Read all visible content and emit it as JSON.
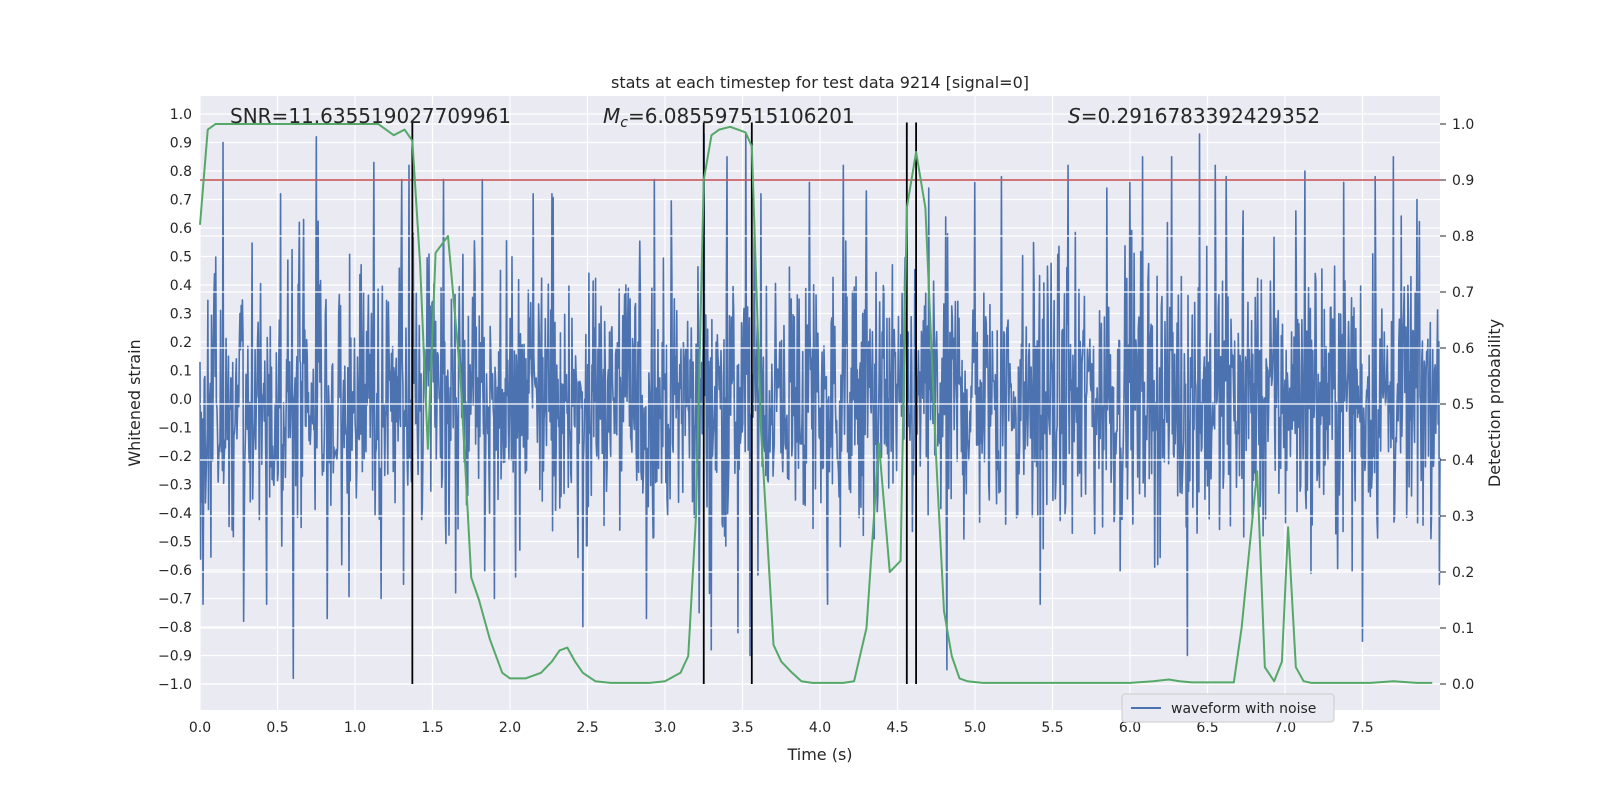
{
  "chart_data": {
    "type": "line",
    "title": "stats at each timestep for test data 9214 [signal=0]",
    "xlabel": "Time (s)",
    "ylabel_left": "Whitened strain",
    "ylabel_right": "Detection probability",
    "xlim": [
      0.0,
      8.0
    ],
    "ylim_left": [
      -1.0,
      1.0
    ],
    "ylim_right": [
      0.0,
      1.0
    ],
    "x_ticks": [
      0.0,
      0.5,
      1.0,
      1.5,
      2.0,
      2.5,
      3.0,
      3.5,
      4.0,
      4.5,
      5.0,
      5.5,
      6.0,
      6.5,
      7.0,
      7.5
    ],
    "x_tick_labels": [
      "0.0",
      "0.5",
      "1.0",
      "1.5",
      "2.0",
      "2.5",
      "3.0",
      "3.5",
      "4.0",
      "4.5",
      "5.0",
      "5.5",
      "6.0",
      "6.5",
      "7.0",
      "7.5"
    ],
    "y_left_ticks": [
      1.0,
      0.9,
      0.8,
      0.7,
      0.6,
      0.5,
      0.4,
      0.3,
      0.2,
      0.1,
      0.0,
      -0.1,
      -0.2,
      -0.3,
      -0.4,
      -0.5,
      -0.6,
      -0.7,
      -0.8,
      -0.9,
      -1.0
    ],
    "y_left_tick_labels": [
      "1.0",
      "0.9",
      "0.8",
      "0.7",
      "0.6",
      "0.5",
      "0.4",
      "0.3",
      "0.2",
      "0.1",
      "0.0",
      "−0.1",
      "−0.2",
      "−0.3",
      "−0.4",
      "−0.5",
      "−0.6",
      "−0.7",
      "−0.8",
      "−0.9",
      "−1.0"
    ],
    "y_right_ticks": [
      1.0,
      0.9,
      0.8,
      0.7,
      0.6,
      0.5,
      0.4,
      0.3,
      0.2,
      0.1,
      0.0
    ],
    "y_right_tick_labels": [
      "1.0",
      "0.9",
      "0.8",
      "0.7",
      "0.6",
      "0.5",
      "0.4",
      "0.3",
      "0.2",
      "0.1",
      "0.0"
    ],
    "grid": true,
    "legend": {
      "placement": "bottom-right",
      "entries": [
        "waveform with noise"
      ]
    },
    "annotations": {
      "snr_prefix": "SNR=",
      "snr_value": "11.635519027709961",
      "mc_symbol": "M",
      "mc_subscript": "c",
      "mc_value": "=6.085597515106201",
      "s_symbol": "S",
      "s_value": "=0.2916783392429352"
    },
    "threshold": {
      "axis": "right",
      "value": 0.9,
      "color": "#c44e52"
    },
    "vertical_markers_x": [
      1.37,
      3.25,
      3.56,
      4.56,
      4.62
    ],
    "marker_range_left": [
      -1.0,
      0.97
    ],
    "waveform": {
      "name": "waveform with noise",
      "color": "#4c72b0",
      "samples": 2048,
      "typical_envelope": 0.37,
      "peaks": [
        [
          0.02,
          -0.72
        ],
        [
          0.15,
          0.9
        ],
        [
          0.28,
          -0.78
        ],
        [
          0.43,
          -0.72
        ],
        [
          0.52,
          0.72
        ],
        [
          0.6,
          -0.98
        ],
        [
          0.67,
          0.63
        ],
        [
          0.75,
          0.92
        ],
        [
          0.82,
          -0.77
        ],
        [
          1.12,
          0.83
        ],
        [
          1.17,
          -0.7
        ],
        [
          1.3,
          0.77
        ],
        [
          1.35,
          0.82
        ],
        [
          1.57,
          0.77
        ],
        [
          1.65,
          -0.68
        ],
        [
          1.82,
          0.77
        ],
        [
          1.9,
          -0.7
        ],
        [
          2.15,
          0.72
        ],
        [
          2.27,
          0.72
        ],
        [
          2.47,
          -0.8
        ],
        [
          2.88,
          -0.77
        ],
        [
          2.93,
          0.77
        ],
        [
          3.22,
          -0.75
        ],
        [
          3.25,
          0.93
        ],
        [
          3.3,
          -0.88
        ],
        [
          3.4,
          0.85
        ],
        [
          3.47,
          -0.82
        ],
        [
          3.52,
          0.93
        ],
        [
          3.55,
          -0.9
        ],
        [
          3.62,
          0.72
        ],
        [
          3.93,
          0.76
        ],
        [
          4.05,
          -0.72
        ],
        [
          4.15,
          0.82
        ],
        [
          4.3,
          0.73
        ],
        [
          4.7,
          0.74
        ],
        [
          4.82,
          -0.95
        ],
        [
          5.0,
          0.76
        ],
        [
          5.17,
          0.78
        ],
        [
          5.42,
          -0.72
        ],
        [
          5.6,
          0.82
        ],
        [
          5.85,
          0.74
        ],
        [
          6.0,
          0.76
        ],
        [
          6.08,
          0.85
        ],
        [
          6.27,
          0.85
        ],
        [
          6.37,
          -0.9
        ],
        [
          6.45,
          0.93
        ],
        [
          6.55,
          0.82
        ],
        [
          6.62,
          0.78
        ],
        [
          6.73,
          0.66
        ],
        [
          7.07,
          0.66
        ],
        [
          7.13,
          0.8
        ],
        [
          7.38,
          0.76
        ],
        [
          7.5,
          -0.85
        ],
        [
          7.58,
          0.78
        ],
        [
          7.7,
          0.85
        ],
        [
          7.85,
          0.7
        ]
      ]
    },
    "series": [
      {
        "name": "",
        "axis": "right",
        "color": "#55a868",
        "x": [
          0.0,
          0.05,
          0.1,
          0.15,
          0.2,
          0.3,
          0.4,
          0.5,
          0.6,
          0.7,
          0.8,
          0.9,
          1.0,
          1.1,
          1.15,
          1.25,
          1.32,
          1.37,
          1.42,
          1.47,
          1.52,
          1.6,
          1.68,
          1.75,
          1.8,
          1.87,
          1.95,
          2.0,
          2.1,
          2.2,
          2.27,
          2.32,
          2.37,
          2.42,
          2.47,
          2.55,
          2.65,
          2.75,
          2.9,
          3.0,
          3.1,
          3.15,
          3.2,
          3.25,
          3.3,
          3.35,
          3.42,
          3.47,
          3.52,
          3.56,
          3.62,
          3.7,
          3.75,
          3.82,
          3.88,
          3.95,
          4.05,
          4.15,
          4.22,
          4.3,
          4.38,
          4.45,
          4.52,
          4.56,
          4.62,
          4.68,
          4.75,
          4.8,
          4.85,
          4.9,
          4.95,
          5.05,
          5.2,
          5.4,
          5.6,
          5.8,
          6.0,
          6.15,
          6.25,
          6.32,
          6.4,
          6.5,
          6.6,
          6.67,
          6.72,
          6.82,
          6.87,
          6.93,
          6.98,
          7.02,
          7.07,
          7.12,
          7.17,
          7.3,
          7.45,
          7.55,
          7.7,
          7.85,
          7.95
        ],
        "y": [
          0.82,
          0.99,
          1.0,
          1.0,
          1.0,
          1.0,
          1.0,
          1.0,
          1.0,
          1.0,
          1.0,
          1.0,
          1.0,
          1.0,
          1.0,
          0.98,
          0.99,
          0.97,
          0.75,
          0.42,
          0.77,
          0.8,
          0.55,
          0.19,
          0.15,
          0.08,
          0.02,
          0.01,
          0.01,
          0.02,
          0.04,
          0.06,
          0.065,
          0.04,
          0.02,
          0.005,
          0.002,
          0.002,
          0.002,
          0.005,
          0.02,
          0.05,
          0.3,
          0.9,
          0.98,
          0.99,
          0.995,
          0.99,
          0.985,
          0.96,
          0.45,
          0.07,
          0.04,
          0.02,
          0.005,
          0.002,
          0.002,
          0.002,
          0.005,
          0.1,
          0.43,
          0.2,
          0.22,
          0.85,
          0.95,
          0.85,
          0.4,
          0.13,
          0.05,
          0.01,
          0.005,
          0.002,
          0.002,
          0.002,
          0.002,
          0.002,
          0.002,
          0.005,
          0.008,
          0.005,
          0.003,
          0.003,
          0.003,
          0.003,
          0.1,
          0.38,
          0.03,
          0.005,
          0.04,
          0.28,
          0.03,
          0.005,
          0.002,
          0.002,
          0.002,
          0.002,
          0.005,
          0.002,
          0.002
        ]
      }
    ]
  }
}
